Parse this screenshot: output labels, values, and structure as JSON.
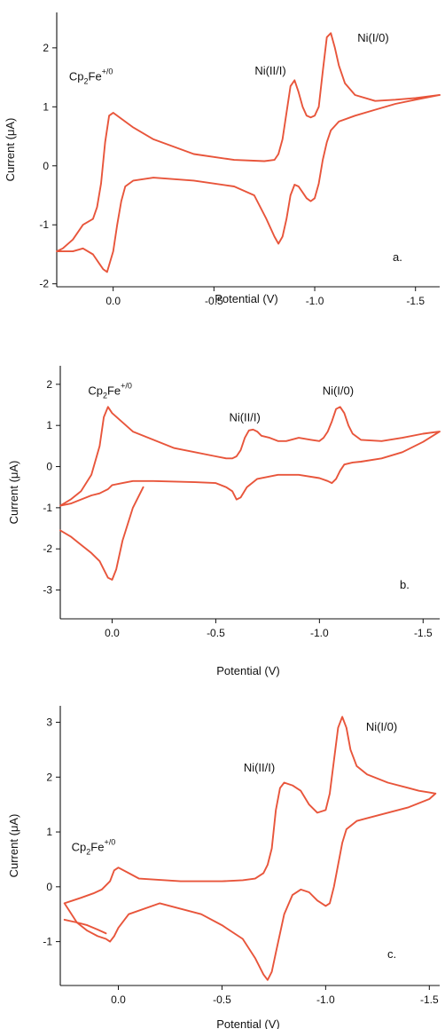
{
  "colors": {
    "trace": "#E8553B",
    "axis": "#111111"
  },
  "chart_data": [
    {
      "type": "line",
      "panel_label": "a.",
      "xlabel": "Potential (V)",
      "ylabel": "Current (μA)",
      "x_reversed": true,
      "xlim": [
        0.28,
        -1.62
      ],
      "ylim": [
        -2.05,
        2.6
      ],
      "xticks": [
        0.0,
        -0.5,
        -1.0,
        -1.5
      ],
      "xtick_labels": [
        "0.0",
        "-0.5",
        "-1.0",
        "-1.5"
      ],
      "yticks": [
        -2,
        -1,
        0,
        1,
        2
      ],
      "ytick_labels": [
        "-2",
        "-1",
        "0",
        "1",
        "2"
      ],
      "annotations": [
        {
          "text": "Cp",
          "sub": "2",
          "main": "Fe",
          "sup": "+/0",
          "x": 0.11,
          "y": 1.45
        },
        {
          "text": "Ni(II/I)",
          "x": -0.78,
          "y": 1.55
        },
        {
          "text": "Ni(I/0)",
          "x": -1.29,
          "y": 2.1
        }
      ],
      "series": [
        {
          "x": [
            -1.62,
            -1.5,
            -1.4,
            -1.3,
            -1.2,
            -1.15,
            -1.12,
            -1.1,
            -1.08,
            -1.06,
            -1.04,
            -1.02,
            -1.0,
            -0.98,
            -0.96,
            -0.94,
            -0.92,
            -0.9,
            -0.88,
            -0.86,
            -0.84,
            -0.82,
            -0.8,
            -0.75,
            -0.6,
            -0.4,
            -0.2,
            -0.1,
            0.0,
            0.02,
            0.04,
            0.06,
            0.08,
            0.1,
            0.15,
            0.2,
            0.25,
            0.28,
            0.2,
            0.15,
            0.1,
            0.07,
            0.05,
            0.03,
            0.0,
            -0.02,
            -0.04,
            -0.06,
            -0.1,
            -0.2,
            -0.4,
            -0.6,
            -0.7,
            -0.76,
            -0.8,
            -0.82,
            -0.84,
            -0.86,
            -0.88,
            -0.9,
            -0.92,
            -0.94,
            -0.96,
            -0.98,
            -1.0,
            -1.02,
            -1.04,
            -1.06,
            -1.08,
            -1.12,
            -1.2,
            -1.3,
            -1.4,
            -1.5,
            -1.62
          ],
          "y": [
            1.2,
            1.15,
            1.12,
            1.1,
            1.2,
            1.4,
            1.7,
            2.0,
            2.25,
            2.18,
            1.6,
            1.0,
            0.85,
            0.82,
            0.85,
            1.0,
            1.25,
            1.45,
            1.35,
            0.9,
            0.45,
            0.2,
            0.1,
            0.08,
            0.1,
            0.2,
            0.45,
            0.65,
            0.9,
            0.85,
            0.4,
            -0.3,
            -0.7,
            -0.9,
            -1.0,
            -1.25,
            -1.4,
            -1.45,
            -1.45,
            -1.4,
            -1.5,
            -1.65,
            -1.75,
            -1.8,
            -1.45,
            -1.0,
            -0.6,
            -0.35,
            -0.25,
            -0.2,
            -0.25,
            -0.35,
            -0.5,
            -0.9,
            -1.2,
            -1.32,
            -1.2,
            -0.9,
            -0.5,
            -0.32,
            -0.35,
            -0.45,
            -0.55,
            -0.6,
            -0.55,
            -0.3,
            0.1,
            0.4,
            0.6,
            0.75,
            0.85,
            0.95,
            1.05,
            1.12,
            1.2
          ]
        }
      ]
    },
    {
      "type": "line",
      "panel_label": "b.",
      "xlabel": "Potential (V)",
      "ylabel": "Current (μA)",
      "x_reversed": true,
      "xlim": [
        0.25,
        -1.58
      ],
      "ylim": [
        -3.7,
        2.45
      ],
      "xticks": [
        0.0,
        -0.5,
        -1.0,
        -1.5
      ],
      "xtick_labels": [
        "0.0",
        "-0.5",
        "-1.0",
        "-1.5"
      ],
      "yticks": [
        -3,
        -2,
        -1,
        0,
        1,
        2
      ],
      "ytick_labels": [
        "-3",
        "-2",
        "-1",
        "0",
        "1",
        "2"
      ],
      "annotations": [
        {
          "text": "Cp",
          "sub": "2",
          "main": "Fe",
          "sup": "+/0",
          "x": 0.01,
          "y": 1.75
        },
        {
          "text": "Ni(II/I)",
          "x": -0.64,
          "y": 1.1
        },
        {
          "text": "Ni(I/0)",
          "x": -1.09,
          "y": 1.75
        }
      ],
      "series": [
        {
          "x": [
            -1.58,
            -1.5,
            -1.4,
            -1.3,
            -1.2,
            -1.16,
            -1.14,
            -1.12,
            -1.1,
            -1.08,
            -1.06,
            -1.04,
            -1.02,
            -1.0,
            -0.96,
            -0.9,
            -0.84,
            -0.8,
            -0.76,
            -0.72,
            -0.7,
            -0.68,
            -0.66,
            -0.64,
            -0.62,
            -0.6,
            -0.58,
            -0.55,
            -0.5,
            -0.3,
            -0.1,
            0.0,
            0.02,
            0.04,
            0.06,
            0.1,
            0.15,
            0.2,
            0.25,
            0.2,
            0.15,
            0.1,
            0.06,
            0.04,
            0.02,
            0.0,
            -0.05,
            -0.1,
            -0.2,
            -0.4,
            -0.5,
            -0.55,
            -0.58,
            -0.6,
            -0.62,
            -0.65,
            -0.7,
            -0.8,
            -0.9,
            -1.0,
            -1.04,
            -1.06,
            -1.08,
            -1.1,
            -1.12,
            -1.16,
            -1.2,
            -1.3,
            -1.4,
            -1.5,
            -1.58
          ],
          "y": [
            0.85,
            0.8,
            0.7,
            0.62,
            0.65,
            0.8,
            1.0,
            1.3,
            1.45,
            1.4,
            1.1,
            0.85,
            0.7,
            0.62,
            0.65,
            0.7,
            0.62,
            0.62,
            0.7,
            0.75,
            0.85,
            0.9,
            0.88,
            0.7,
            0.4,
            0.25,
            0.2,
            0.2,
            0.25,
            0.45,
            0.85,
            1.3,
            1.45,
            1.2,
            0.5,
            -0.2,
            -0.6,
            -0.8,
            -0.95,
            -0.9,
            -0.8,
            -0.7,
            -0.65,
            -0.6,
            -0.55,
            -0.45,
            -0.4,
            -0.35,
            -0.35,
            -0.38,
            -0.4,
            -0.5,
            -0.6,
            -0.8,
            -0.75,
            -0.5,
            -0.3,
            -0.2,
            -0.2,
            -0.28,
            -0.35,
            -0.4,
            -0.3,
            -0.1,
            0.05,
            0.1,
            0.12,
            0.2,
            0.35,
            0.6,
            0.85
          ]
        },
        {
          "x": [
            0.25,
            0.2,
            0.15,
            0.1,
            0.06,
            0.04,
            0.02,
            0.0,
            -0.02,
            -0.05,
            -0.1,
            -0.15
          ],
          "y": [
            -1.55,
            -1.7,
            -1.9,
            -2.1,
            -2.3,
            -2.5,
            -2.7,
            -2.75,
            -2.5,
            -1.8,
            -1.0,
            -0.5
          ]
        }
      ]
    },
    {
      "type": "line",
      "panel_label": "c.",
      "xlabel": "Potential (V)",
      "ylabel": "Current (μA)",
      "x_reversed": true,
      "xlim": [
        0.28,
        -1.55
      ],
      "ylim": [
        -1.8,
        3.3
      ],
      "xticks": [
        0.0,
        -0.5,
        -1.0,
        -1.5
      ],
      "xtick_labels": [
        "0.0",
        "-0.5",
        "-1.0",
        "-1.5"
      ],
      "yticks": [
        -1,
        0,
        1,
        2,
        3
      ],
      "ytick_labels": [
        "-1",
        "0",
        "1",
        "2",
        "3"
      ],
      "annotations": [
        {
          "text": "Cp",
          "sub": "2",
          "main": "Fe",
          "sup": "+/0",
          "x": 0.12,
          "y": 0.65
        },
        {
          "text": "Ni(II/I)",
          "x": -0.68,
          "y": 2.1
        },
        {
          "text": "Ni(I/0)",
          "x": -1.27,
          "y": 2.85
        }
      ],
      "series": [
        {
          "x": [
            -1.53,
            -1.5,
            -1.45,
            -1.4,
            -1.3,
            -1.2,
            -1.15,
            -1.12,
            -1.1,
            -1.08,
            -1.06,
            -1.04,
            -1.02,
            -1.0,
            -0.96,
            -0.92,
            -0.88,
            -0.84,
            -0.8,
            -0.78,
            -0.76,
            -0.74,
            -0.72,
            -0.7,
            -0.66,
            -0.6,
            -0.5,
            -0.3,
            -0.1,
            -0.05,
            0.0,
            0.02,
            0.04,
            0.08,
            0.12,
            0.18,
            0.22,
            0.26,
            0.2,
            0.15,
            0.1,
            0.06,
            0.04,
            0.02,
            0.0,
            -0.05,
            -0.2,
            -0.4,
            -0.5,
            -0.6,
            -0.66,
            -0.7,
            -0.72,
            -0.74,
            -0.76,
            -0.8,
            -0.84,
            -0.88,
            -0.92,
            -0.96,
            -1.0,
            -1.02,
            -1.04,
            -1.06,
            -1.08,
            -1.1,
            -1.15,
            -1.2,
            -1.3,
            -1.4,
            -1.5,
            -1.53
          ],
          "y": [
            1.7,
            1.72,
            1.75,
            1.8,
            1.9,
            2.05,
            2.2,
            2.5,
            2.9,
            3.1,
            2.9,
            2.3,
            1.7,
            1.4,
            1.35,
            1.5,
            1.75,
            1.85,
            1.9,
            1.8,
            1.4,
            0.7,
            0.4,
            0.25,
            0.15,
            0.12,
            0.1,
            0.1,
            0.15,
            0.25,
            0.35,
            0.3,
            0.1,
            -0.05,
            -0.12,
            -0.2,
            -0.25,
            -0.3,
            -0.65,
            -0.8,
            -0.9,
            -0.95,
            -1.0,
            -0.9,
            -0.75,
            -0.5,
            -0.3,
            -0.5,
            -0.7,
            -0.95,
            -1.3,
            -1.6,
            -1.7,
            -1.55,
            -1.2,
            -0.5,
            -0.15,
            -0.05,
            -0.1,
            -0.25,
            -0.35,
            -0.3,
            0.0,
            0.4,
            0.8,
            1.05,
            1.2,
            1.25,
            1.35,
            1.45,
            1.6,
            1.7
          ]
        },
        {
          "x": [
            0.26,
            0.2,
            0.15,
            0.1,
            0.06
          ],
          "y": [
            -0.6,
            -0.65,
            -0.7,
            -0.78,
            -0.85
          ]
        }
      ]
    }
  ]
}
